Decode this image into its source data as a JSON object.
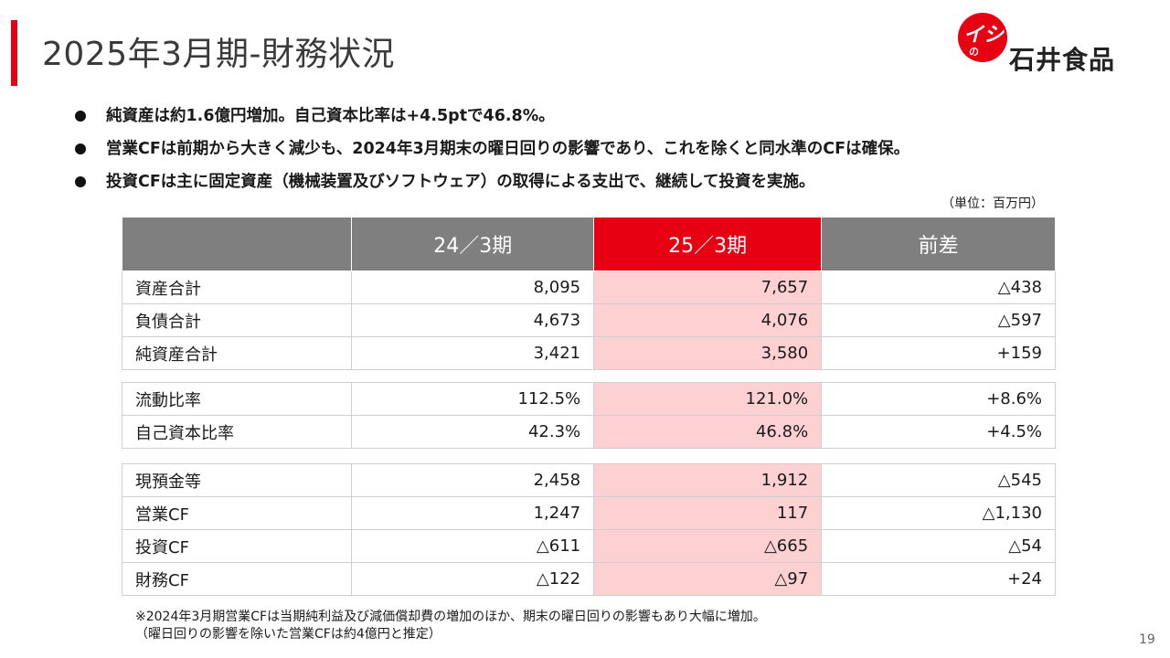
{
  "header": {
    "title": "2025年3月期-財務状況",
    "logo_script": "イシイ",
    "logo_no": "の",
    "logo_name": "石井食品",
    "accent_color": "#e60012"
  },
  "bullets": [
    "純資産は約1.6億円増加。自己資本比率は+4.5ptで46.8%。",
    "営業CFは前期から大きく減少も、2024年3月期末の曜日回りの影響であり、これを除くと同水準のCFは確保。",
    "投資CFは主に固定資産（機械装置及びソフトウェア）の取得による支出で、継続して投資を実施。"
  ],
  "unit": "（単位：百万円）",
  "table": {
    "columns": [
      "",
      "24／3期",
      "25／3期",
      "前差"
    ],
    "groups": [
      [
        [
          "資産合計",
          "8,095",
          "7,657",
          "△438"
        ],
        [
          "負債合計",
          "4,673",
          "4,076",
          "△597"
        ],
        [
          "純資産合計",
          "3,421",
          "3,580",
          "+159"
        ]
      ],
      [
        [
          "流動比率",
          "112.5%",
          "121.0%",
          "+8.6%"
        ],
        [
          "自己資本比率",
          "42.3%",
          "46.8%",
          "+4.5%"
        ]
      ],
      [
        [
          "現預金等",
          "2,458",
          "1,912",
          "△545"
        ],
        [
          "営業CF",
          "1,247",
          "117",
          "△1,130"
        ],
        [
          "投資CF",
          "△611",
          "△665",
          "△54"
        ],
        [
          "財務CF",
          "△122",
          "△97",
          "+24"
        ]
      ]
    ]
  },
  "notes": [
    "※2024年3月期営業CFは当期純利益及び減価償却費の増加のほか、期末の曜日回りの影響もあり大幅に増加。",
    "（曜日回りの影響を除いた営業CFは約4億円と推定）"
  ],
  "page_number": "19"
}
